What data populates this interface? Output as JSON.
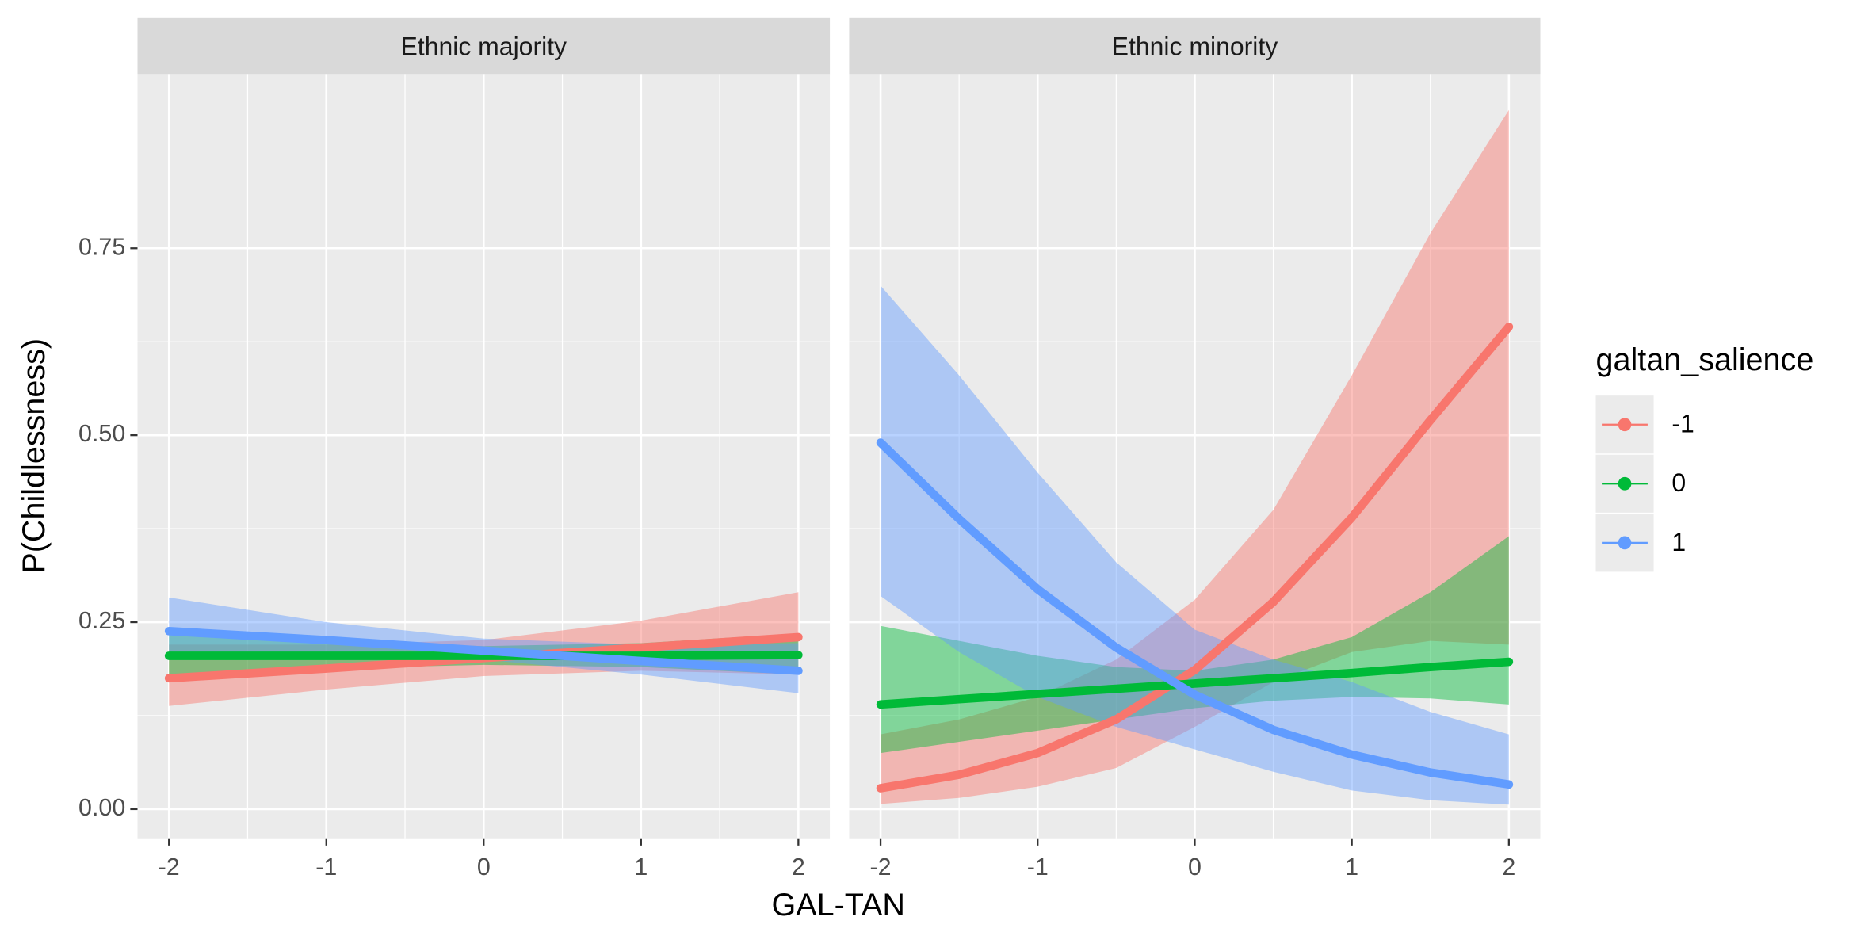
{
  "chart_data": [
    {
      "type": "line",
      "title": "Ethnic majority",
      "xlabel": "GAL-TAN",
      "ylabel": "P(Childlessness)",
      "x": [
        -2,
        -1,
        0,
        1,
        2
      ],
      "series": [
        {
          "color": "#F8766D",
          "values": [
            0.175,
            0.188,
            0.202,
            0.216,
            0.23
          ],
          "lower": [
            0.138,
            0.16,
            0.178,
            0.185,
            0.18
          ],
          "upper": [
            0.22,
            0.22,
            0.226,
            0.252,
            0.29
          ]
        },
        {
          "color": "#00BA38",
          "values": [
            0.205,
            0.205,
            0.205,
            0.205,
            0.206
          ],
          "lower": [
            0.18,
            0.188,
            0.193,
            0.19,
            0.18
          ],
          "upper": [
            0.235,
            0.225,
            0.218,
            0.222,
            0.235
          ]
        },
        {
          "color": "#619CFF",
          "values": [
            0.238,
            0.226,
            0.212,
            0.198,
            0.185
          ],
          "lower": [
            0.2,
            0.205,
            0.2,
            0.18,
            0.155
          ],
          "upper": [
            0.283,
            0.25,
            0.228,
            0.22,
            0.222
          ]
        }
      ],
      "xlim": [
        -2.2,
        2.2
      ],
      "xticks": [
        -2,
        -1,
        0,
        1,
        2
      ],
      "ylim": [
        -0.039,
        0.982
      ],
      "yticks": [
        {
          "value": 0,
          "label": "0.00"
        },
        {
          "value": 0.25,
          "label": "0.25"
        },
        {
          "value": 0.5,
          "label": "0.50"
        },
        {
          "value": 0.75,
          "label": "0.75"
        }
      ],
      "grid": true
    },
    {
      "type": "line",
      "title": "Ethnic minority",
      "legend_title": "galtan_salience",
      "x": [
        -2,
        -1.5,
        -1,
        -0.5,
        0,
        0.5,
        1,
        1.5,
        2
      ],
      "series": [
        {
          "name": "-1",
          "color": "#F8766D",
          "values": [
            0.028,
            0.046,
            0.075,
            0.12,
            0.186,
            0.277,
            0.39,
            0.52,
            0.645
          ],
          "lower": [
            0.007,
            0.015,
            0.03,
            0.055,
            0.11,
            0.17,
            0.21,
            0.225,
            0.22
          ],
          "upper": [
            0.1,
            0.12,
            0.15,
            0.2,
            0.28,
            0.4,
            0.58,
            0.77,
            0.935
          ]
        },
        {
          "name": "0",
          "color": "#00BA38",
          "values": [
            0.14,
            0.147,
            0.154,
            0.161,
            0.168,
            0.175,
            0.182,
            0.19,
            0.197
          ],
          "lower": [
            0.075,
            0.09,
            0.105,
            0.12,
            0.135,
            0.145,
            0.15,
            0.148,
            0.14
          ],
          "upper": [
            0.245,
            0.225,
            0.205,
            0.19,
            0.185,
            0.2,
            0.23,
            0.29,
            0.365
          ]
        },
        {
          "name": "1",
          "color": "#619CFF",
          "values": [
            0.49,
            0.388,
            0.294,
            0.216,
            0.153,
            0.106,
            0.073,
            0.049,
            0.033
          ],
          "lower": [
            0.285,
            0.21,
            0.15,
            0.11,
            0.08,
            0.05,
            0.025,
            0.012,
            0.006
          ],
          "upper": [
            0.7,
            0.58,
            0.45,
            0.33,
            0.24,
            0.2,
            0.17,
            0.13,
            0.1
          ]
        }
      ],
      "xlim": [
        -2.2,
        2.2
      ],
      "xticks": [
        -2,
        -1,
        0,
        1,
        2
      ],
      "ylim": [
        -0.039,
        0.982
      ],
      "yticks": [
        0,
        0.25,
        0.5,
        0.75
      ],
      "grid": true
    }
  ]
}
